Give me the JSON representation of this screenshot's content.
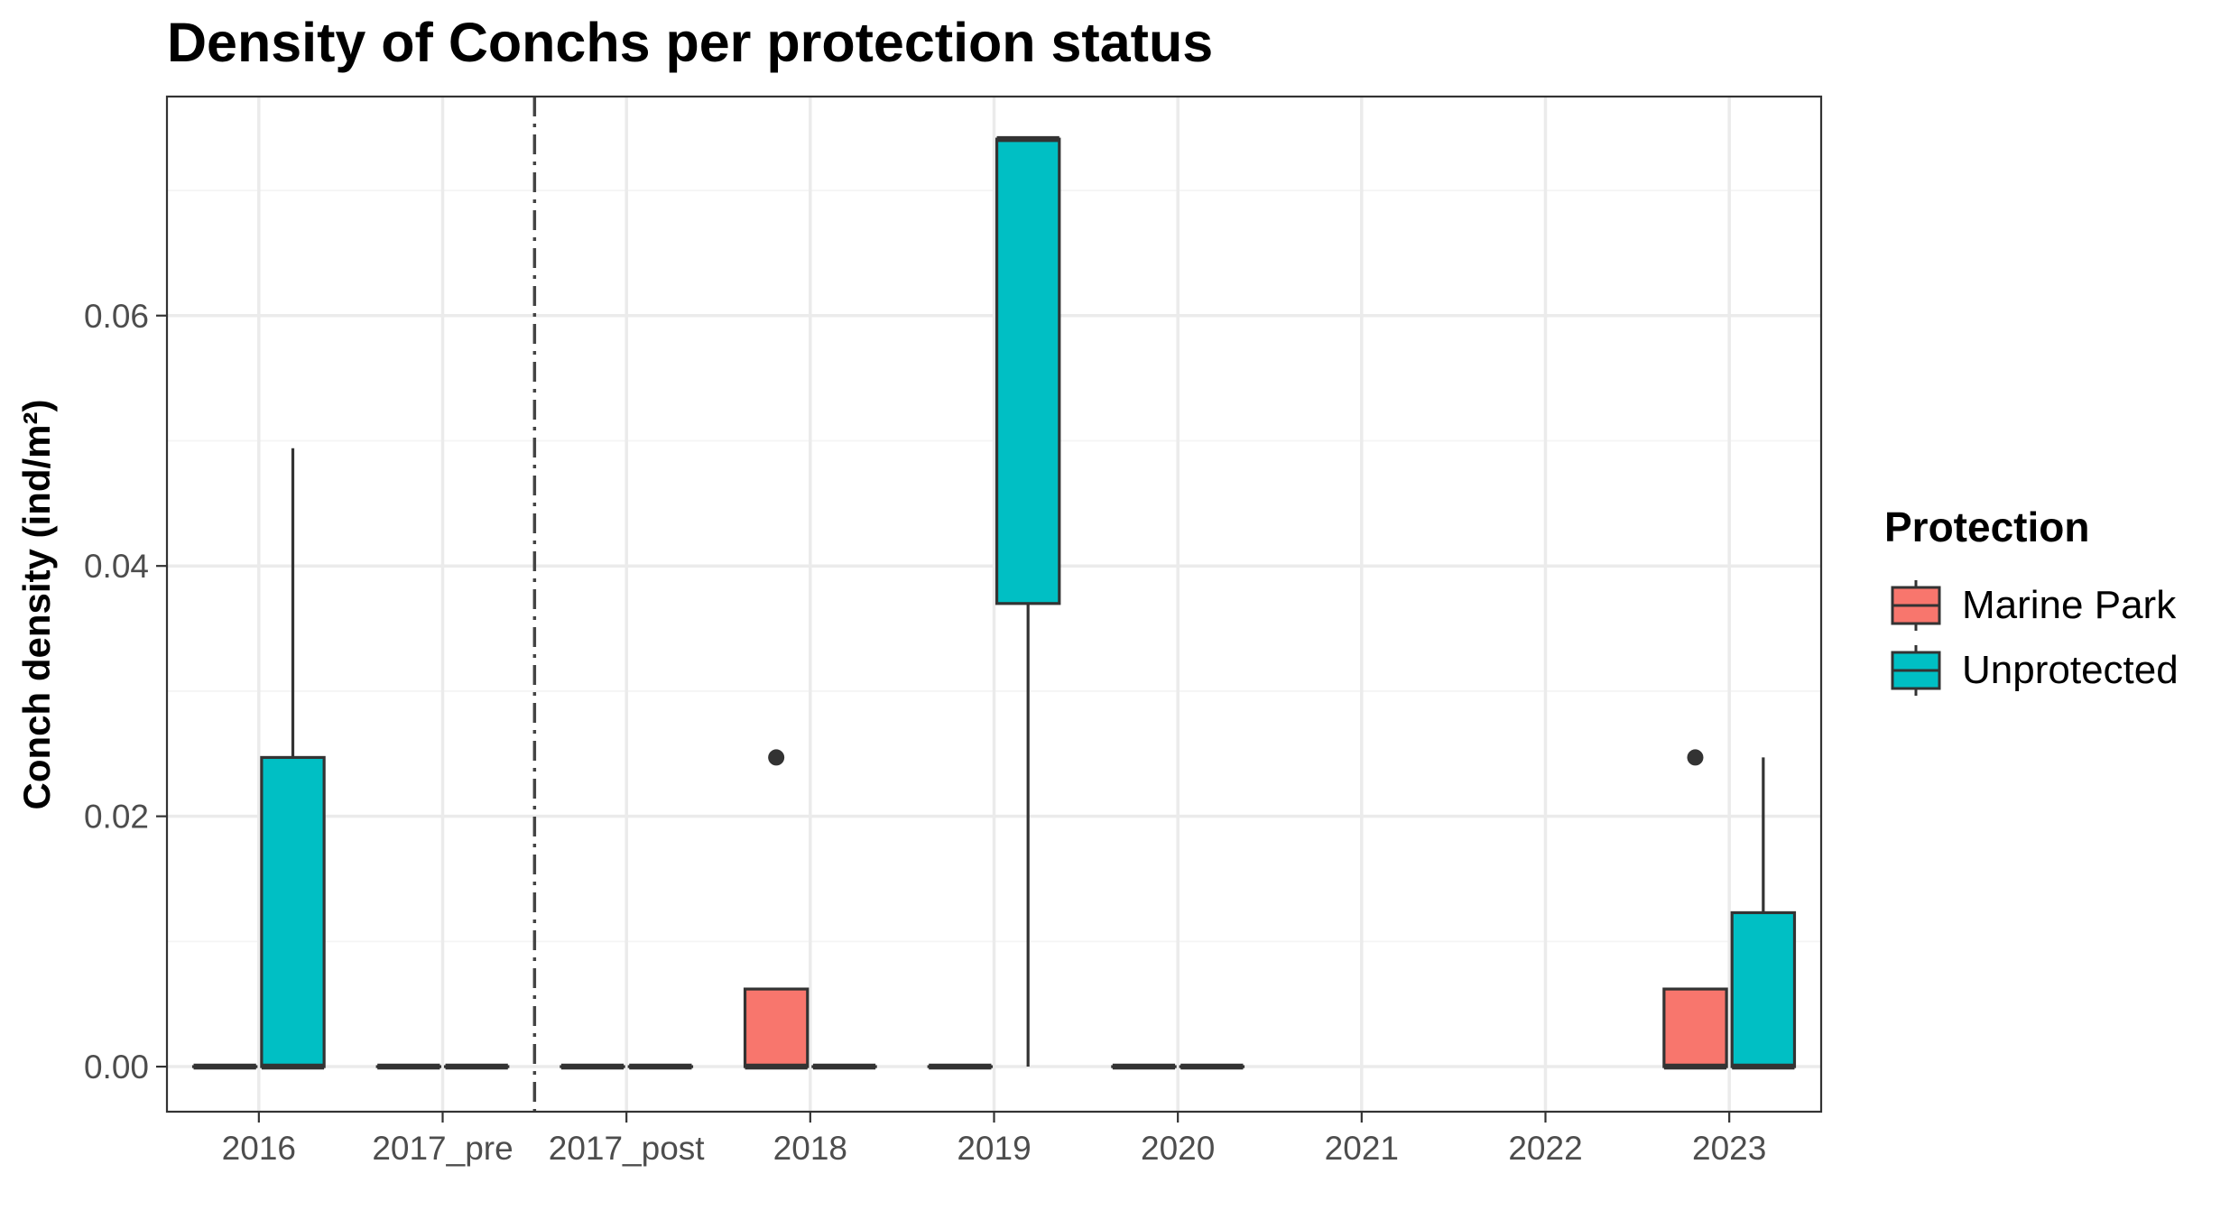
{
  "chart_data": {
    "type": "boxplot",
    "title": "Density of Conchs per protection status",
    "xlabel": "",
    "ylabel": "Conch density (ind/m²)",
    "categories": [
      "2016",
      "2017_pre",
      "2017_post",
      "2018",
      "2019",
      "2020",
      "2021",
      "2022",
      "2023"
    ],
    "ylim": [
      -0.0036,
      0.0775
    ],
    "yticks": [
      0.0,
      0.02,
      0.04,
      0.06
    ],
    "ytick_labels": [
      "0.00",
      "0.02",
      "0.04",
      "0.06"
    ],
    "grid": true,
    "reference_line": {
      "type": "vertical",
      "style": "dot-dash",
      "between": [
        "2017_pre",
        "2017_post"
      ]
    },
    "legend": {
      "title": "Protection",
      "position": "right"
    },
    "series": [
      {
        "name": "Marine Park",
        "color": "#F8766D",
        "boxes": [
          {
            "category": "2016",
            "q1": 0,
            "median": 0,
            "q3": 0,
            "whisker_low": 0,
            "whisker_high": 0,
            "outliers": []
          },
          {
            "category": "2017_pre",
            "q1": 0,
            "median": 0,
            "q3": 0,
            "whisker_low": 0,
            "whisker_high": 0,
            "outliers": []
          },
          {
            "category": "2017_post",
            "q1": 0,
            "median": 0,
            "q3": 0,
            "whisker_low": 0,
            "whisker_high": 0,
            "outliers": []
          },
          {
            "category": "2018",
            "q1": 0,
            "median": 0,
            "q3": 0.0062,
            "whisker_low": 0,
            "whisker_high": 0.0062,
            "outliers": [
              0.0247
            ]
          },
          {
            "category": "2019",
            "q1": 0,
            "median": 0,
            "q3": 0,
            "whisker_low": 0,
            "whisker_high": 0,
            "outliers": []
          },
          {
            "category": "2020",
            "q1": 0,
            "median": 0,
            "q3": 0,
            "whisker_low": 0,
            "whisker_high": 0,
            "outliers": []
          },
          {
            "category": "2023",
            "q1": 0,
            "median": 0,
            "q3": 0.0062,
            "whisker_low": 0,
            "whisker_high": 0.0062,
            "outliers": [
              0.0247
            ]
          }
        ]
      },
      {
        "name": "Unprotected",
        "color": "#00BFC4",
        "boxes": [
          {
            "category": "2016",
            "q1": 0,
            "median": 0,
            "q3": 0.0247,
            "whisker_low": 0,
            "whisker_high": 0.0494,
            "outliers": []
          },
          {
            "category": "2017_pre",
            "q1": 0,
            "median": 0,
            "q3": 0,
            "whisker_low": 0,
            "whisker_high": 0,
            "outliers": []
          },
          {
            "category": "2017_post",
            "q1": 0,
            "median": 0,
            "q3": 0,
            "whisker_low": 0,
            "whisker_high": 0,
            "outliers": []
          },
          {
            "category": "2018",
            "q1": 0,
            "median": 0,
            "q3": 0,
            "whisker_low": 0,
            "whisker_high": 0,
            "outliers": []
          },
          {
            "category": "2019",
            "q1": 0.037,
            "median": 0.0741,
            "q3": 0.0741,
            "whisker_low": 0,
            "whisker_high": 0.0741,
            "outliers": []
          },
          {
            "category": "2020",
            "q1": 0,
            "median": 0,
            "q3": 0,
            "whisker_low": 0,
            "whisker_high": 0,
            "outliers": []
          },
          {
            "category": "2023",
            "q1": 0,
            "median": 0,
            "q3": 0.0123,
            "whisker_low": 0,
            "whisker_high": 0.0247,
            "outliers": []
          }
        ]
      }
    ]
  }
}
